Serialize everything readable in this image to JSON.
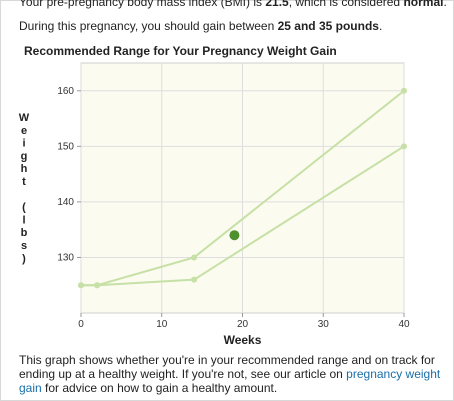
{
  "intro": {
    "bmi_prefix": "Your pre-pregnancy body mass index (BMI) is ",
    "bmi_value": "21.5",
    "bmi_mid": ", which is considered ",
    "bmi_category": "normal",
    "bmi_suffix": ".",
    "gain_prefix": "During this pregnancy, you should gain between ",
    "gain_range": "25 and 35 pounds",
    "gain_suffix": "."
  },
  "footer": {
    "text_before": "This graph shows whether you're in your recommended range and on track for ending up at a healthy weight. If you're not, see our article on ",
    "link_label": "pregnancy weight gain",
    "text_after": " for advice on how to gain a healthy amount."
  },
  "colors": {
    "plot_bg": "#fbfbf0",
    "grid": "#dedede",
    "range_line": "#c6e0a6",
    "range_point": "#c6e0a6",
    "current_point": "#4e8f2e"
  },
  "chart_data": {
    "type": "line",
    "title": "Recommended Range for Your Pregnancy Weight Gain",
    "xlabel": "Weeks",
    "ylabel": "Weight (lbs)",
    "xlim": [
      0,
      40
    ],
    "ylim": [
      120,
      165
    ],
    "x_ticks": [
      0,
      10,
      20,
      30,
      40
    ],
    "y_ticks": [
      130,
      140,
      150,
      160
    ],
    "grid": true,
    "series": [
      {
        "x": [
          0,
          2,
          14,
          40
        ],
        "y": [
          125,
          125,
          130,
          160
        ]
      },
      {
        "x": [
          0,
          2,
          14,
          40
        ],
        "y": [
          125,
          125,
          126,
          150
        ]
      }
    ],
    "current": {
      "x": 19,
      "y": 134
    }
  }
}
